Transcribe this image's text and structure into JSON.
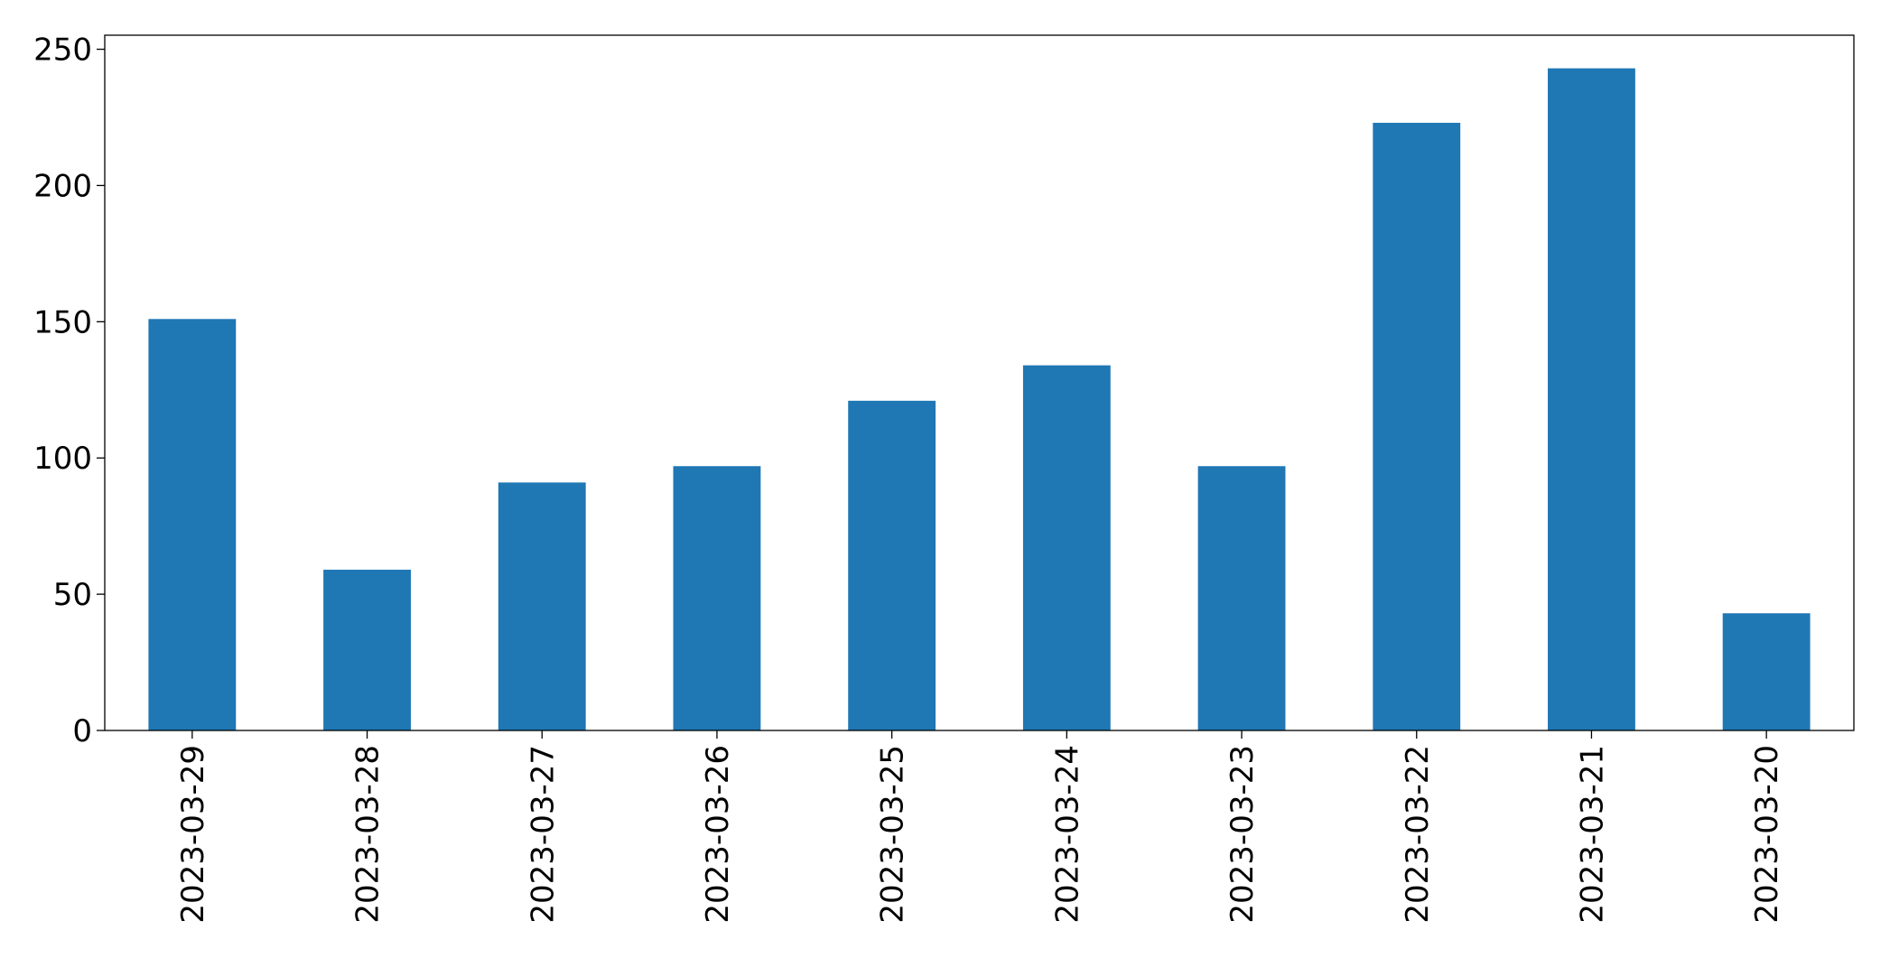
{
  "chart_data": {
    "type": "bar",
    "categories": [
      "2023-03-29",
      "2023-03-28",
      "2023-03-27",
      "2023-03-26",
      "2023-03-25",
      "2023-03-24",
      "2023-03-23",
      "2023-03-22",
      "2023-03-21",
      "2023-03-20"
    ],
    "values": [
      151,
      59,
      91,
      97,
      121,
      134,
      97,
      223,
      243,
      43
    ],
    "color": "#1f77b4",
    "ylim": [
      0,
      255.15
    ],
    "yticks": [
      0,
      50,
      100,
      150,
      200,
      250
    ],
    "grid": false
  }
}
